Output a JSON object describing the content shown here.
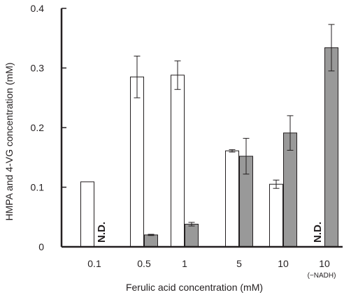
{
  "chart_data": {
    "type": "bar",
    "xlabel": "Ferulic acid concentration (mM)",
    "ylabel": "HMPA and 4-VG concentration (mM)",
    "ylim": [
      0,
      0.4
    ],
    "yticks": [
      "0",
      "0.1",
      "0.2",
      "0.3",
      "0.4"
    ],
    "categories": [
      "0.1",
      "0.5",
      "1",
      "5",
      "10",
      "10"
    ],
    "category_sublabels": [
      "",
      "",
      "",
      "",
      "",
      "(−NADH)"
    ],
    "not_detected_label": "N.D.",
    "series": [
      {
        "fill": "#ffffff",
        "values": [
          0.109,
          0.285,
          0.288,
          0.161,
          0.105,
          null
        ],
        "errors": [
          0,
          0.035,
          0.024,
          0.002,
          0.007,
          0
        ],
        "not_detected": [
          false,
          false,
          false,
          false,
          false,
          true
        ]
      },
      {
        "fill": "#999999",
        "values": [
          null,
          0.02,
          0.038,
          0.152,
          0.191,
          0.334
        ],
        "errors": [
          0,
          0.001,
          0.003,
          0.03,
          0.029,
          0.039
        ],
        "not_detected": [
          true,
          false,
          false,
          false,
          false,
          false
        ]
      }
    ],
    "grid": false,
    "legend": "none"
  }
}
